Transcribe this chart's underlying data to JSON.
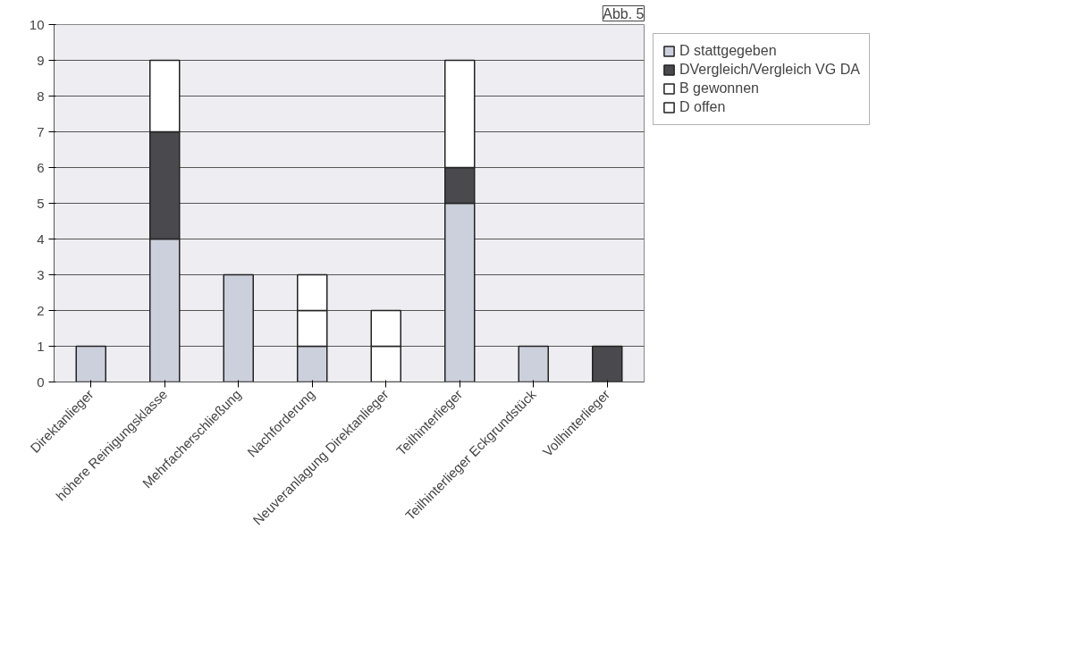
{
  "chart_data": {
    "type": "bar",
    "stacked": true,
    "categories": [
      "Direktanlieger",
      "höhere Reinigungsklasse",
      "Mehrfacherschließung",
      "Nachforderung",
      "Neuveranlagung Direktanlieger",
      "Teilhinterlieger",
      "Teilhinterlieger Eckgrundstück",
      "Vollhinterlieger"
    ],
    "series": [
      {
        "name": "D stattgegeben",
        "color": "#ccd0dc",
        "values": [
          1,
          4,
          3,
          1,
          null,
          5,
          1,
          null
        ]
      },
      {
        "name": "DVergleich/Vergleich VG DA",
        "color": "#4a4a4e",
        "values": [
          null,
          3,
          null,
          null,
          null,
          1,
          null,
          1
        ]
      },
      {
        "name": "B gewonnen",
        "color": "#ffffff",
        "values": [
          null,
          null,
          null,
          1,
          1,
          null,
          null,
          null
        ]
      },
      {
        "name": "D offen",
        "color": "#ffffff",
        "values": [
          null,
          2,
          null,
          1,
          1,
          3,
          null,
          null
        ]
      }
    ],
    "ylim": [
      0,
      10
    ],
    "yticks": [
      0,
      1,
      2,
      3,
      4,
      5,
      6,
      7,
      8,
      9,
      10
    ],
    "grid": "y",
    "legend": "right",
    "annotations": [
      "Abb. 5"
    ]
  }
}
